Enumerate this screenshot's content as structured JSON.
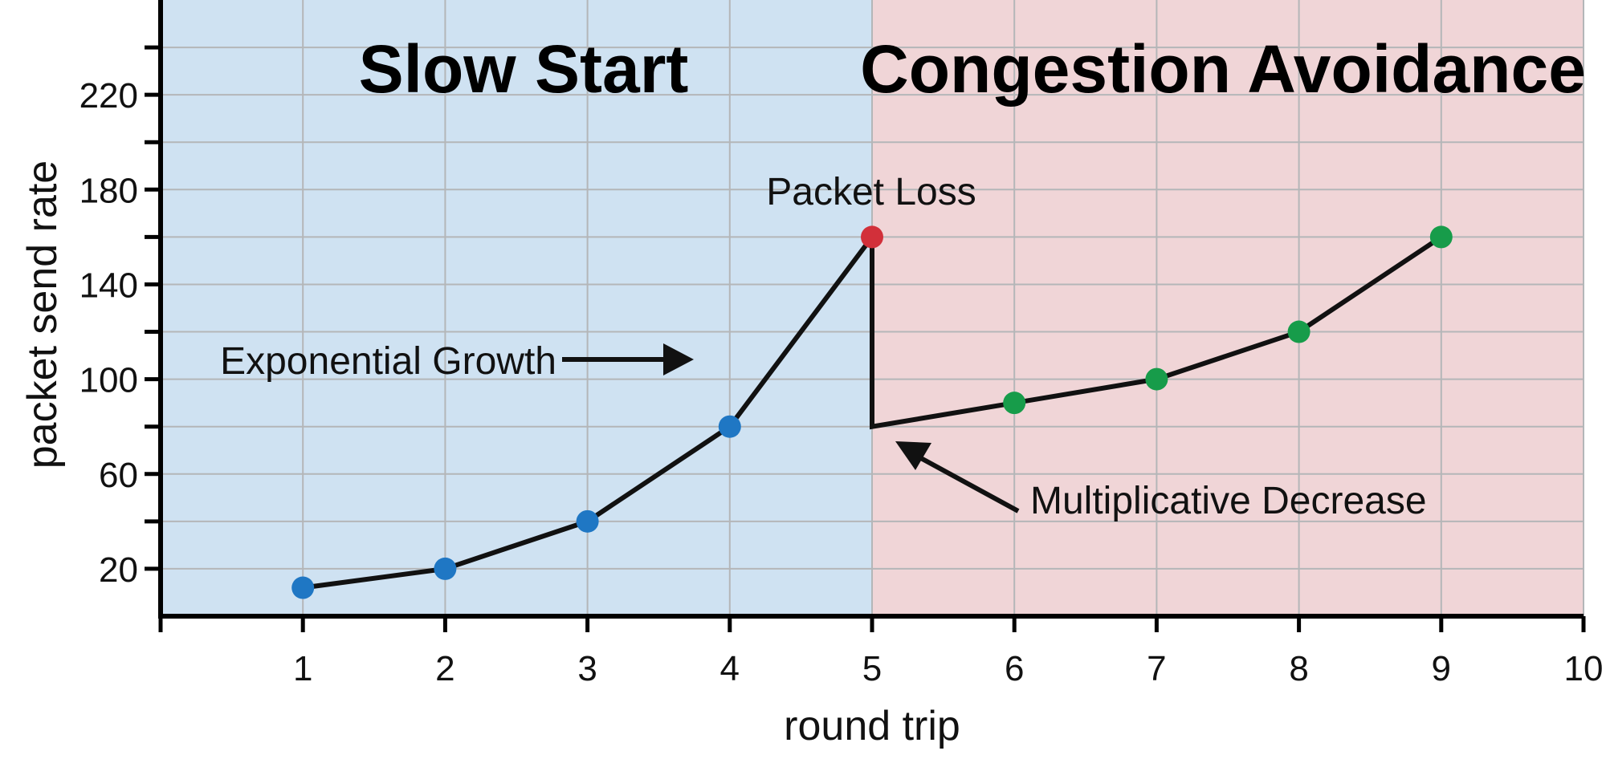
{
  "chart_data": {
    "type": "line",
    "xlabel": "round trip",
    "ylabel": "packet send rate",
    "xlim": [
      0,
      10
    ],
    "ylim": [
      0,
      260
    ],
    "x_ticks": [
      1,
      2,
      3,
      4,
      5,
      6,
      7,
      8,
      9,
      10
    ],
    "y_ticks": [
      20,
      60,
      100,
      140,
      180,
      220
    ],
    "grid": true,
    "regions": [
      {
        "label": "Slow Start",
        "x_range": [
          0,
          5
        ],
        "color": "#cfe2f2"
      },
      {
        "label": "Congestion Avoidance",
        "x_range": [
          5,
          10
        ],
        "color": "#f0d5d7"
      }
    ],
    "line": {
      "color": "#111111",
      "points": [
        {
          "x": 1,
          "y": 12,
          "color": "#1f77c4"
        },
        {
          "x": 2,
          "y": 20,
          "color": "#1f77c4"
        },
        {
          "x": 3,
          "y": 40,
          "color": "#1f77c4"
        },
        {
          "x": 4,
          "y": 80,
          "color": "#1f77c4"
        },
        {
          "x": 5,
          "y": 160,
          "color": "#d2303a"
        },
        {
          "x": 5,
          "y": 80,
          "color": null
        },
        {
          "x": 6,
          "y": 90,
          "color": "#179c4a"
        },
        {
          "x": 7,
          "y": 100,
          "color": "#179c4a"
        },
        {
          "x": 8,
          "y": 120,
          "color": "#179c4a"
        },
        {
          "x": 9,
          "y": 160,
          "color": "#179c4a"
        }
      ]
    },
    "annotations": [
      {
        "text": "Packet Loss"
      },
      {
        "text": "Exponential Growth"
      },
      {
        "text": "Multiplicative Decrease"
      }
    ]
  }
}
